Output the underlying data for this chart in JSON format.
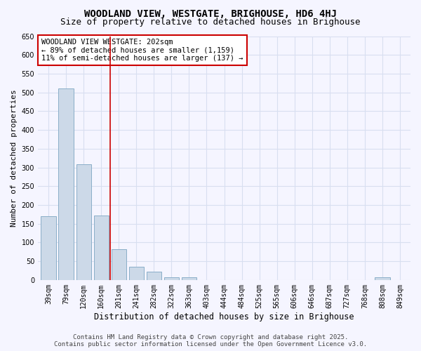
{
  "title": "WOODLAND VIEW, WESTGATE, BRIGHOUSE, HD6 4HJ",
  "subtitle": "Size of property relative to detached houses in Brighouse",
  "xlabel": "Distribution of detached houses by size in Brighouse",
  "ylabel": "Number of detached properties",
  "categories": [
    "39sqm",
    "79sqm",
    "120sqm",
    "160sqm",
    "201sqm",
    "241sqm",
    "282sqm",
    "322sqm",
    "363sqm",
    "403sqm",
    "444sqm",
    "484sqm",
    "525sqm",
    "565sqm",
    "606sqm",
    "646sqm",
    "687sqm",
    "727sqm",
    "768sqm",
    "808sqm",
    "849sqm"
  ],
  "values": [
    170,
    510,
    308,
    172,
    82,
    35,
    22,
    8,
    8,
    0,
    0,
    0,
    0,
    0,
    0,
    0,
    0,
    0,
    0,
    7,
    0
  ],
  "bar_color": "#ccd9e8",
  "bar_edge_color": "#8aaec8",
  "vline_x_index": 4,
  "annotation_text": "WOODLAND VIEW WESTGATE: 202sqm\n← 89% of detached houses are smaller (1,159)\n11% of semi-detached houses are larger (137) →",
  "annotation_box_color": "#ffffff",
  "annotation_box_edge_color": "#cc0000",
  "vline_color": "#cc0000",
  "background_color": "#f5f5ff",
  "grid_color": "#d8dff0",
  "ylim": [
    0,
    650
  ],
  "yticks": [
    0,
    50,
    100,
    150,
    200,
    250,
    300,
    350,
    400,
    450,
    500,
    550,
    600,
    650
  ],
  "footer_line1": "Contains HM Land Registry data © Crown copyright and database right 2025.",
  "footer_line2": "Contains public sector information licensed under the Open Government Licence v3.0.",
  "title_fontsize": 10,
  "subtitle_fontsize": 9,
  "xlabel_fontsize": 8.5,
  "ylabel_fontsize": 8,
  "tick_fontsize": 7,
  "annotation_fontsize": 7.5,
  "footer_fontsize": 6.5
}
